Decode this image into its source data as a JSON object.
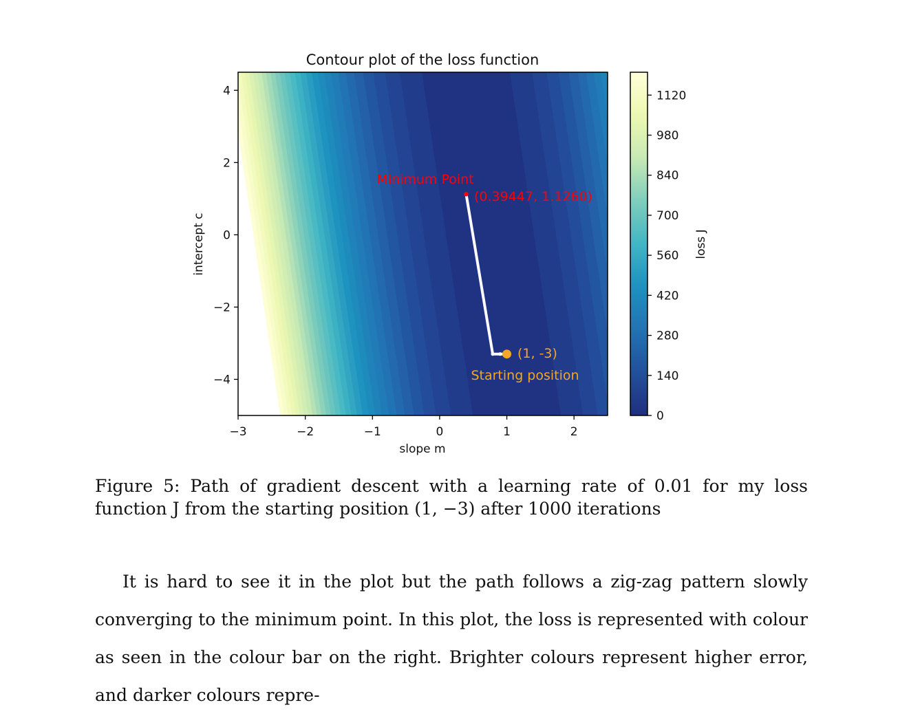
{
  "chart_data": {
    "type": "contour",
    "title": "Contour plot of the loss function",
    "xlabel": "slope m",
    "ylabel": "intercept c",
    "xlim": [
      -3,
      2.5
    ],
    "ylim": [
      -5,
      4.5
    ],
    "x_ticks": [
      -3,
      -2,
      -1,
      0,
      1,
      2
    ],
    "x_tick_labels": [
      "−3",
      "−2",
      "−1",
      "0",
      "1",
      "2"
    ],
    "y_ticks": [
      -4,
      -2,
      0,
      2,
      4
    ],
    "y_tick_labels": [
      "−4",
      "−2",
      "0",
      "2",
      "4"
    ],
    "colorbar": {
      "label": "loss J",
      "min": 0,
      "max": 1200,
      "ticks": [
        0,
        140,
        280,
        420,
        560,
        700,
        840,
        980,
        1120
      ],
      "tick_labels": [
        "0",
        "140",
        "280",
        "420",
        "560",
        "700",
        "840",
        "980",
        "1120"
      ]
    },
    "colormap": [
      "#1f2f7f",
      "#234f9c",
      "#2273b3",
      "#1d91c0",
      "#41b6c4",
      "#7fcdbb",
      "#c7e9b4",
      "#edf8b1",
      "#ffffd9"
    ],
    "path": {
      "color": "#ffffff",
      "points": [
        [
          1,
          -3.3
        ],
        [
          0.9,
          -3.3
        ],
        [
          0.79,
          -3.3
        ],
        [
          0.39447,
          1.126
        ]
      ]
    },
    "minimum": {
      "x": 0.39447,
      "y": 1.126,
      "color": "#ff0000",
      "label": "Minimum Point",
      "coord_label": "(0.39447, 1.1260)"
    },
    "start": {
      "x": 1,
      "y": -3.3,
      "color": "#f5a623",
      "label": "Starting position",
      "coord_label": "(1, -3)"
    }
  },
  "caption": {
    "text": "Figure 5: Path of gradient descent with a learning rate of 0.01 for my loss function J from the starting position (1, −3) after 1000 iterations"
  },
  "body": {
    "text": "It is hard to see it in the plot but the path follows a zig-zag pattern slowly converging to the minimum point. In this plot, the loss is represented with colour as seen in the colour bar on the right. Brighter colours represent higher error, and darker colours repre-"
  }
}
